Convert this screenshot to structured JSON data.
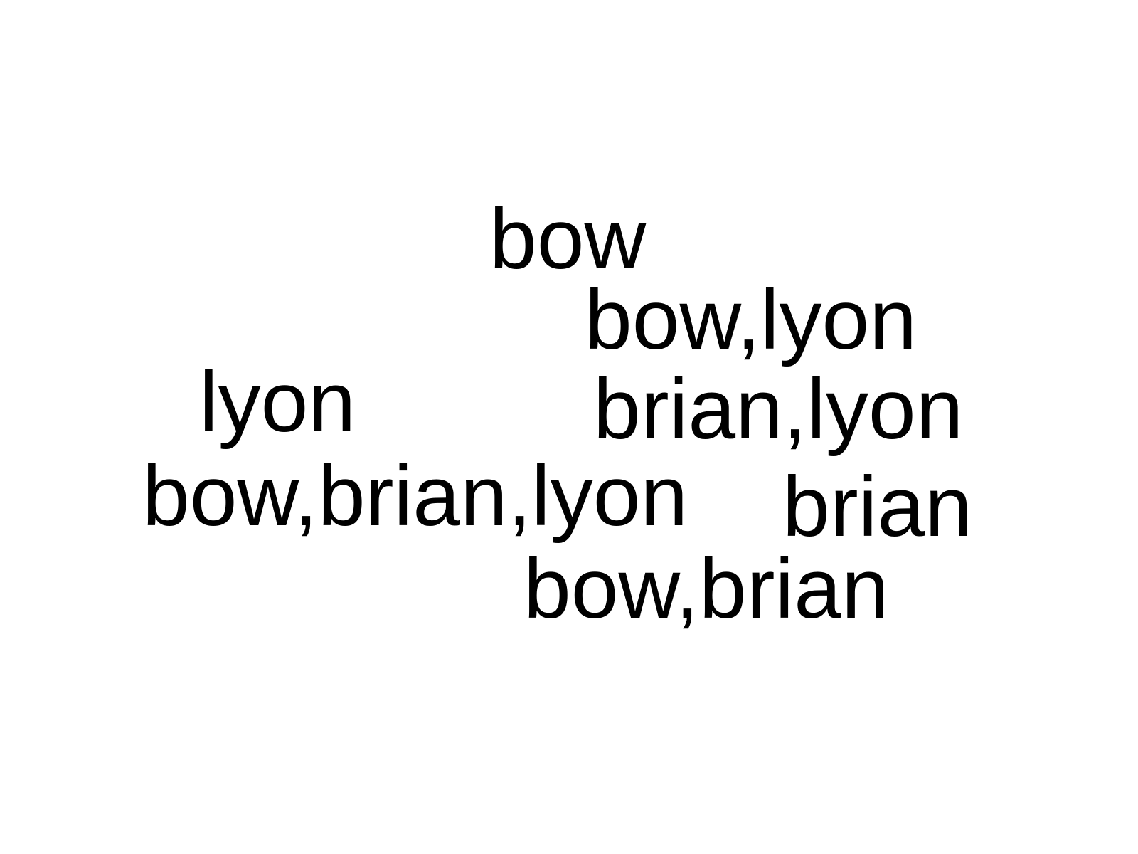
{
  "words": [
    {
      "text": "bow"
    },
    {
      "text": "bow,lyon"
    },
    {
      "text": "lyon"
    },
    {
      "text": "brian,lyon"
    },
    {
      "text": "bow,brian,lyon"
    },
    {
      "text": "brian"
    },
    {
      "text": "bow,brian"
    }
  ],
  "colors": {
    "background": "#ffffff",
    "text": "#000000"
  }
}
